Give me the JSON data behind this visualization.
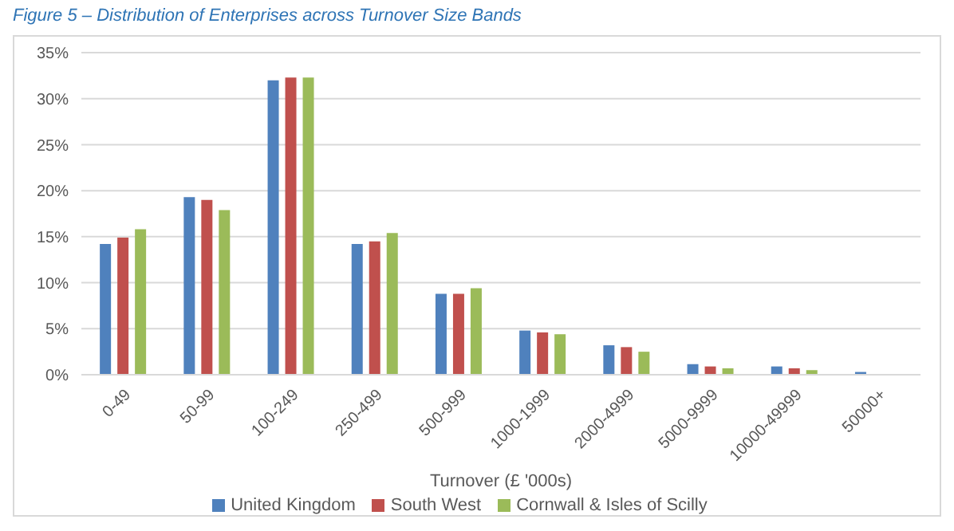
{
  "chart_data": {
    "type": "bar",
    "title": "Figure 5 – Distribution of Enterprises across Turnover Size Bands",
    "xlabel": "Turnover (£ '000s)",
    "categories": [
      "0-49",
      "50-99",
      "100-249",
      "250-499",
      "500-999",
      "1000-1999",
      "2000-4999",
      "5000-9999",
      "10000-49999",
      "50000+"
    ],
    "series": [
      {
        "name": "United Kingdom",
        "color": "#4f81bd",
        "values": [
          14.2,
          19.3,
          32.0,
          14.2,
          8.8,
          4.8,
          3.2,
          1.15,
          0.9,
          0.3
        ]
      },
      {
        "name": "South West",
        "color": "#c0504d",
        "values": [
          14.9,
          19.0,
          32.3,
          14.5,
          8.8,
          4.6,
          3.0,
          0.9,
          0.7,
          0
        ]
      },
      {
        "name": "Cornwall & Isles of Scilly",
        "color": "#9bbb59",
        "values": [
          15.8,
          17.9,
          32.3,
          15.4,
          9.4,
          4.4,
          2.5,
          0.7,
          0.5,
          0
        ]
      }
    ],
    "ylim": [
      0,
      35
    ],
    "yticks": [
      {
        "value": 0,
        "label": "0%"
      },
      {
        "value": 5,
        "label": "5%"
      },
      {
        "value": 10,
        "label": "10%"
      },
      {
        "value": 15,
        "label": "15%"
      },
      {
        "value": 20,
        "label": "20%"
      },
      {
        "value": 25,
        "label": "25%"
      },
      {
        "value": 30,
        "label": "30%"
      },
      {
        "value": 35,
        "label": "35%"
      }
    ],
    "grid": "y",
    "legend": "bottom"
  }
}
